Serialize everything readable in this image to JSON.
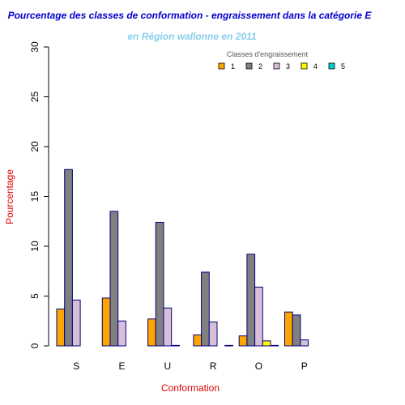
{
  "chart_data": {
    "type": "bar",
    "title": "Pourcentage des classes de conformation - engraissement dans la catégorie E",
    "subtitle": "en Région wallonne en 2011",
    "xlabel": "Conformation",
    "ylabel": "Pourcentage",
    "ylim": [
      0,
      30
    ],
    "yticks": [
      0,
      5,
      10,
      15,
      20,
      25,
      30
    ],
    "categories": [
      "S",
      "E",
      "U",
      "R",
      "O",
      "P"
    ],
    "legend_title": "Classes d'engraissement",
    "legend_position": "top-right",
    "grid": false,
    "series": [
      {
        "name": "1",
        "color": "#FFA500",
        "values": [
          3.7,
          4.8,
          2.7,
          1.1,
          1.0,
          3.4
        ]
      },
      {
        "name": "2",
        "color": "#808080",
        "values": [
          17.7,
          13.5,
          12.4,
          7.4,
          9.2,
          3.1
        ]
      },
      {
        "name": "3",
        "color": "#D8BFD8",
        "values": [
          4.6,
          2.5,
          3.8,
          2.4,
          5.9,
          0.6
        ]
      },
      {
        "name": "4",
        "color": "#FFFF00",
        "values": [
          0.0,
          0.0,
          0.05,
          0.0,
          0.5,
          0.0
        ]
      },
      {
        "name": "5",
        "color": "#00CED1",
        "values": [
          0.0,
          0.0,
          0.0,
          0.05,
          0.05,
          0.0
        ]
      }
    ],
    "colors": {
      "title": "#0000CD",
      "subtitle": "#87CEEB",
      "axis_labels": "#E00000",
      "bar_border": "#000080"
    }
  }
}
